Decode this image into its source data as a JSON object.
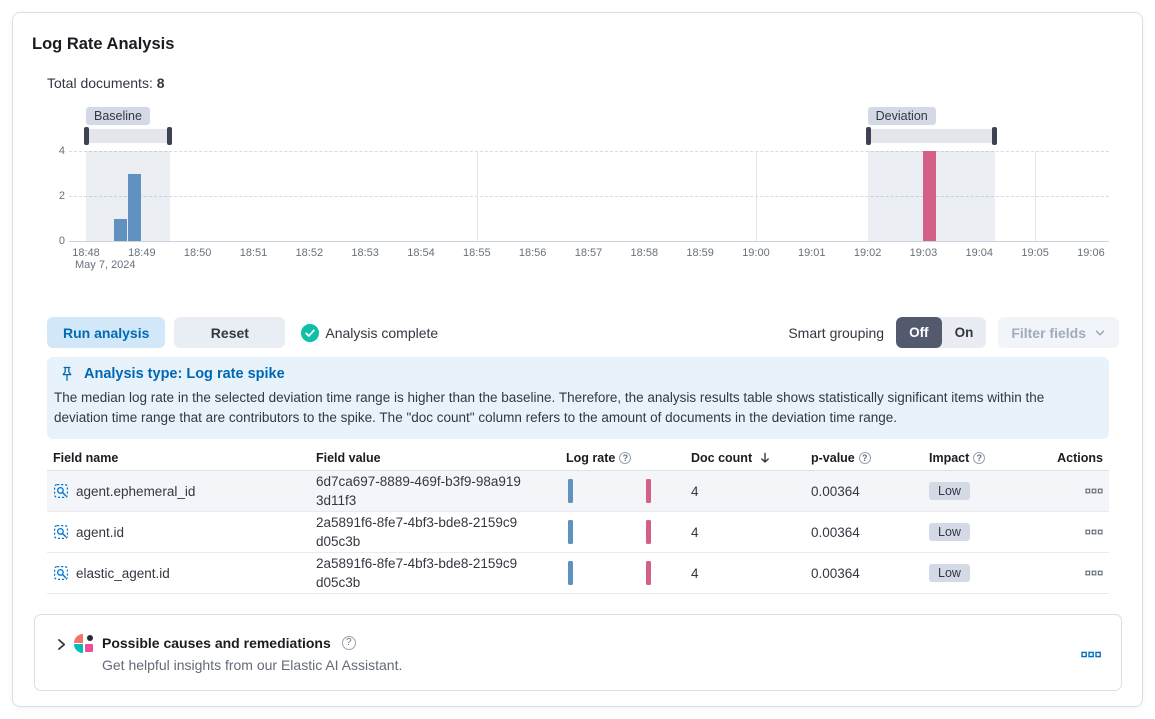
{
  "panel": {
    "title": "Log Rate Analysis"
  },
  "summary": {
    "label": "Total documents:",
    "value": "8"
  },
  "chart_data": {
    "type": "bar",
    "xlabel": "",
    "ylabel": "",
    "ylim": [
      0,
      4
    ],
    "y_ticks": [
      0,
      2,
      4
    ],
    "x_ticks": [
      "18:48",
      "18:49",
      "18:50",
      "18:51",
      "18:52",
      "18:53",
      "18:54",
      "18:55",
      "18:56",
      "18:57",
      "18:58",
      "18:59",
      "19:00",
      "19:01",
      "19:02",
      "19:03",
      "19:04",
      "19:05",
      "19:06"
    ],
    "x_axis_date_label": "May 7, 2024",
    "bucket_seconds": 15,
    "grid": true,
    "legend": false,
    "series": [
      {
        "name": "Baseline doc count",
        "color": "#6092C0",
        "points": [
          {
            "time": "18:48:30",
            "value": 1
          },
          {
            "time": "18:48:45",
            "value": 3
          }
        ]
      },
      {
        "name": "Deviation doc count",
        "color": "#D36086",
        "points": [
          {
            "time": "19:03:00",
            "value": 4
          }
        ]
      }
    ],
    "brushes": [
      {
        "label": "Baseline",
        "start": "18:48:00",
        "end": "18:49:30"
      },
      {
        "label": "Deviation",
        "start": "19:02:00",
        "end": "19:04:17"
      }
    ],
    "vertical_gridlines": [
      "18:55",
      "19:00",
      "19:05"
    ]
  },
  "toolbar": {
    "run_button": "Run analysis",
    "reset_button": "Reset",
    "status": "Analysis complete",
    "smart_grouping_label": "Smart grouping",
    "toggle_off": "Off",
    "toggle_on": "On",
    "filter_fields": "Filter fields"
  },
  "callout": {
    "title": "Analysis type: Log rate spike",
    "body": "The median log rate in the selected deviation time range is higher than the baseline. Therefore, the analysis results table shows statistically significant items within the deviation time range that are contributors to the spike. The \"doc count\" column refers to the amount of documents in the deviation time range."
  },
  "table": {
    "headers": {
      "field_name": "Field name",
      "field_value": "Field value",
      "log_rate": "Log rate",
      "doc_count": "Doc count",
      "p_value": "p-value",
      "impact": "Impact",
      "actions": "Actions"
    },
    "rows": [
      {
        "field_name": "agent.ephemeral_id",
        "field_value": "6d7ca697-8889-469f-b3f9-98a9193d11f3",
        "doc_count": "4",
        "p_value": "0.00364",
        "impact": "Low"
      },
      {
        "field_name": "agent.id",
        "field_value": "2a5891f6-8fe7-4bf3-bde8-2159c9d05c3b",
        "doc_count": "4",
        "p_value": "0.00364",
        "impact": "Low"
      },
      {
        "field_name": "elastic_agent.id",
        "field_value": "2a5891f6-8fe7-4bf3-bde8-2159c9d05c3b",
        "doc_count": "4",
        "p_value": "0.00364",
        "impact": "Low"
      }
    ]
  },
  "assistant_panel": {
    "title": "Possible causes and remediations",
    "subtitle": "Get helpful insights from our Elastic AI Assistant."
  },
  "glyphs": {
    "help": "?"
  },
  "icons": {
    "status": "check-in-circle-icon",
    "callout": "pin-icon",
    "field": "search-field-icon",
    "row_actions": "boxes-horizontal-icon",
    "assistant": "elastic-ai-assistant-icon",
    "accordion": "chevron-right-icon",
    "filter_fields": "chevron-down-icon",
    "doc_count_sort": "arrow-down-icon",
    "help": "question-in-circle-icon"
  },
  "colors": {
    "primary": "#0071C2",
    "baseline_bar": "#6092C0",
    "deviation_bar": "#D36086",
    "success": "#0CBFA6",
    "callout_bg": "#E7F2FB",
    "badge_bg": "#D3DAE6",
    "toggle_selected_bg": "#535A6E"
  }
}
